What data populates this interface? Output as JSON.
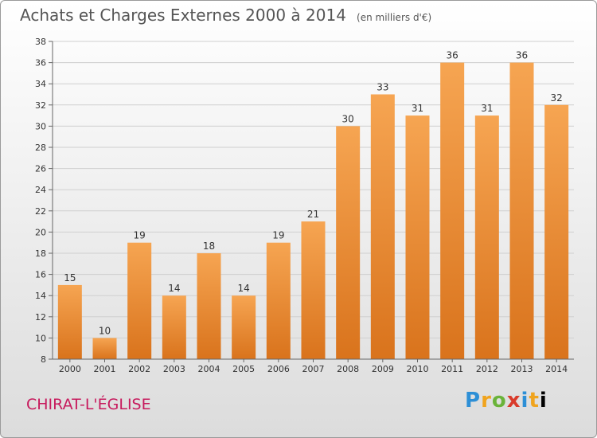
{
  "title": "Achats et Charges Externes 2000 à 2014",
  "subtitle": "(en milliers d'€)",
  "place": "CHIRAT-L'ÉGLISE",
  "logo": [
    "P",
    "r",
    "o",
    "x",
    "i",
    "t",
    "i"
  ],
  "colors": {
    "bar_light": "#f6a552",
    "bar_dark": "#d9731c",
    "grid": "#cfcfcf",
    "axis": "#666666",
    "text": "#333333"
  },
  "chart_data": {
    "type": "bar",
    "title": "Achats et Charges Externes 2000 à 2014",
    "subtitle": "(en milliers d'€)",
    "xlabel": "",
    "ylabel": "",
    "categories": [
      "2000",
      "2001",
      "2002",
      "2003",
      "2004",
      "2005",
      "2006",
      "2007",
      "2008",
      "2009",
      "2010",
      "2011",
      "2012",
      "2013",
      "2014"
    ],
    "values": [
      15,
      10,
      19,
      14,
      18,
      14,
      19,
      21,
      30,
      33,
      31,
      36,
      31,
      36,
      32
    ],
    "data_labels": [
      "15",
      "10",
      "19",
      "14",
      "18",
      "14",
      "19",
      "21",
      "30",
      "33",
      "31",
      "36",
      "31",
      "36",
      "32"
    ],
    "ylim": [
      8,
      38
    ],
    "yticks": [
      "8",
      "10",
      "12",
      "14",
      "16",
      "18",
      "20",
      "22",
      "24",
      "26",
      "28",
      "30",
      "32",
      "34",
      "36",
      "38"
    ],
    "grid": true,
    "legend": "none"
  }
}
